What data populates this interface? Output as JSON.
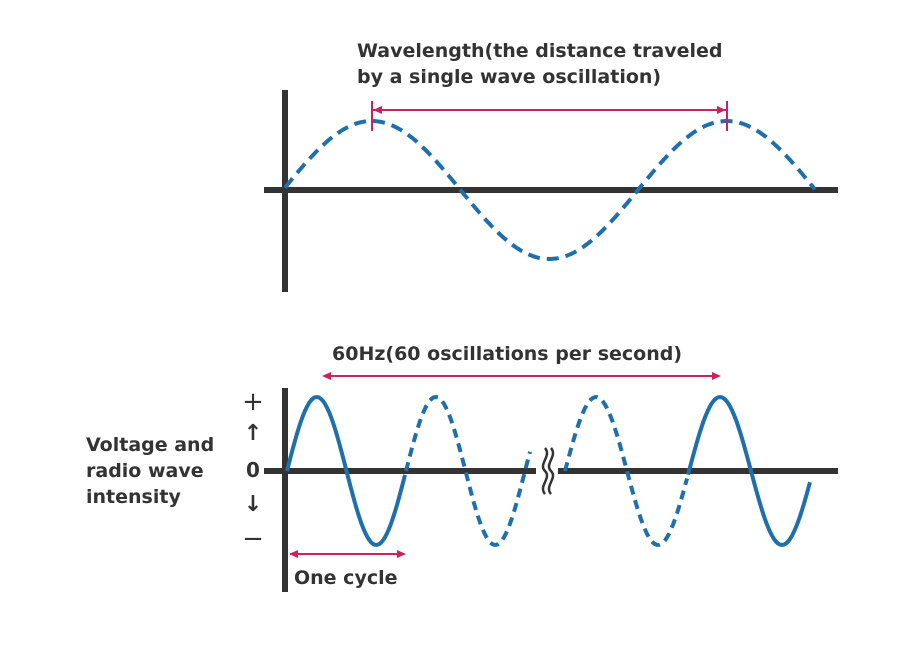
{
  "top_diagram": {
    "label_line1": "Wavelength(the distance traveled",
    "label_line2": "by a single wave oscillation)"
  },
  "bottom_diagram": {
    "frequency_label": "60Hz(60 oscillations per second)",
    "plus_sign": "+",
    "zero_label": "0",
    "minus_sign": "−",
    "up_arrow": "↑",
    "down_arrow": "↓",
    "y_label_line1": "Voltage and",
    "y_label_line2": "radio wave",
    "y_label_line3": "intensity",
    "cycle_label": "One cycle"
  },
  "colors": {
    "wave": "#1f6fad",
    "measure": "#c8225f",
    "axis": "#333333"
  }
}
